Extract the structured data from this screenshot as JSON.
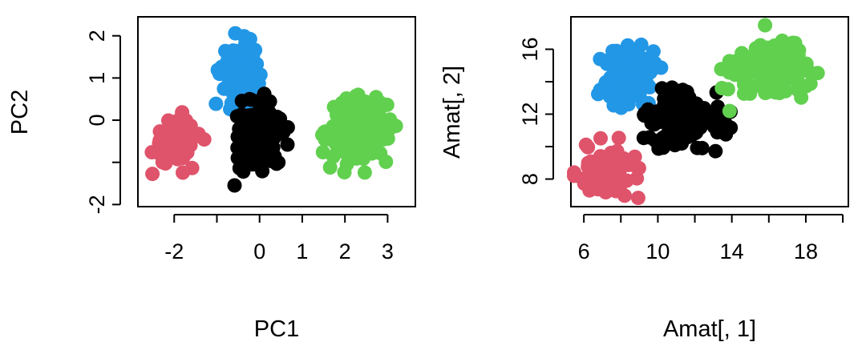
{
  "chart_data": [
    {
      "type": "scatter",
      "title": "",
      "xlabel": "PC1",
      "ylabel": "PC2",
      "xlim": [
        -2.85,
        3.65
      ],
      "ylim": [
        -2.05,
        2.45
      ],
      "xticks": [
        -2,
        -1,
        0,
        1,
        2,
        3
      ],
      "xtick_labels": [
        "-2",
        "",
        "0",
        "1",
        "2",
        "3"
      ],
      "yticks": [
        -2,
        -1,
        0,
        1,
        2
      ],
      "ytick_labels": [
        "-2",
        "",
        "0",
        "1",
        "2"
      ],
      "grid": false,
      "series": [
        {
          "color": "#DF536B",
          "center": [
            -1.95,
            -0.5
          ],
          "spread": [
            0.28,
            0.28
          ]
        },
        {
          "color": "#2297E6",
          "center": [
            -0.45,
            1.1
          ],
          "spread": [
            0.22,
            0.35
          ]
        },
        {
          "color": "#000000",
          "center": [
            0.0,
            -0.4
          ],
          "spread": [
            0.3,
            0.4
          ]
        },
        {
          "color": "#61D04F",
          "center": [
            2.3,
            -0.25
          ],
          "spread": [
            0.35,
            0.38
          ]
        }
      ]
    },
    {
      "type": "scatter",
      "title": "",
      "xlabel": "Amat[, 1]",
      "ylabel": "Amat[, 2]",
      "xlim": [
        5.3,
        20.3
      ],
      "ylim": [
        6.3,
        18.0
      ],
      "xticks": [
        6,
        8,
        10,
        12,
        14,
        16,
        18,
        20
      ],
      "xtick_labels": [
        "6",
        "",
        "10",
        "",
        "14",
        "",
        "18",
        ""
      ],
      "yticks": [
        8,
        10,
        12,
        14,
        16
      ],
      "ytick_labels": [
        "8",
        "",
        "12",
        "",
        "16"
      ],
      "grid": false,
      "series": [
        {
          "color": "#DF536B",
          "center": [
            7.3,
            8.4
          ],
          "spread": [
            0.9,
            0.8
          ]
        },
        {
          "color": "#2297E6",
          "center": [
            8.5,
            14.2
          ],
          "spread": [
            0.7,
            1.0
          ]
        },
        {
          "color": "#000000",
          "center": [
            11.5,
            11.6
          ],
          "spread": [
            1.0,
            0.9
          ]
        },
        {
          "color": "#61D04F",
          "center": [
            15.8,
            14.6
          ],
          "spread": [
            1.2,
            0.9
          ]
        }
      ]
    }
  ]
}
